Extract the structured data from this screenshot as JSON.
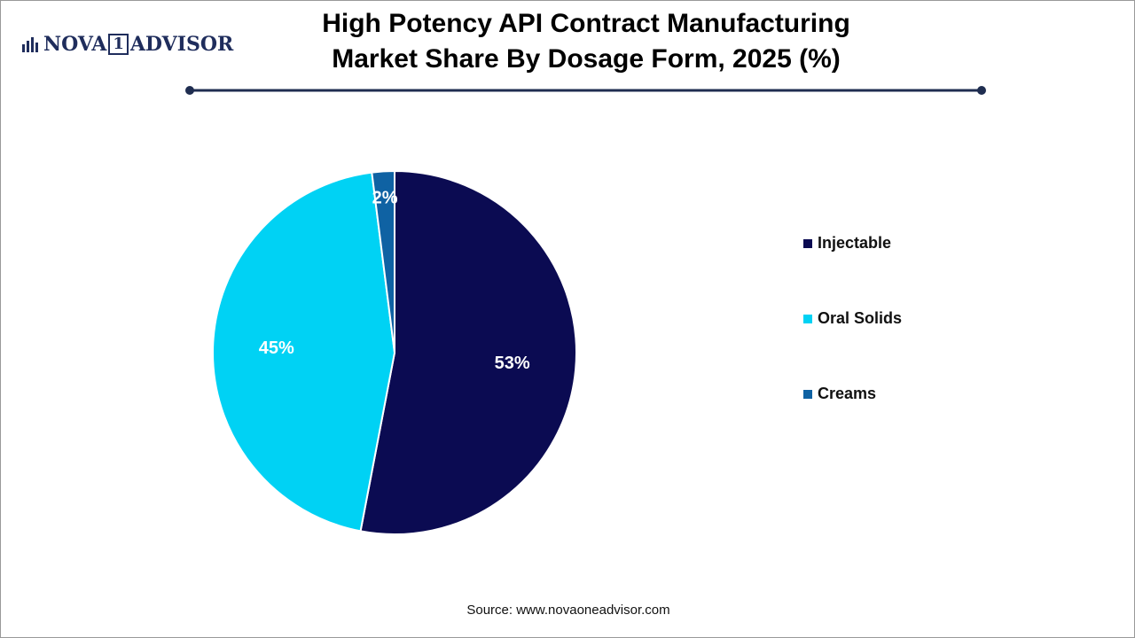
{
  "logo": {
    "left": "NOVA",
    "middle": "1",
    "right": "ADVISOR"
  },
  "chart_data": {
    "type": "pie",
    "title": "High Potency API Contract Manufacturing Market Share By Dosage Form, 2025 (%)",
    "categories": [
      "Injectable",
      "Oral Solids",
      "Creams"
    ],
    "values": [
      53,
      45,
      2
    ],
    "value_labels": [
      "53%",
      "45%",
      "2%"
    ],
    "colors": [
      "#0b0b52",
      "#00d2f4",
      "#0f62a3"
    ],
    "legend": "right",
    "source": "Source: www.novaoneadvisor.com"
  }
}
